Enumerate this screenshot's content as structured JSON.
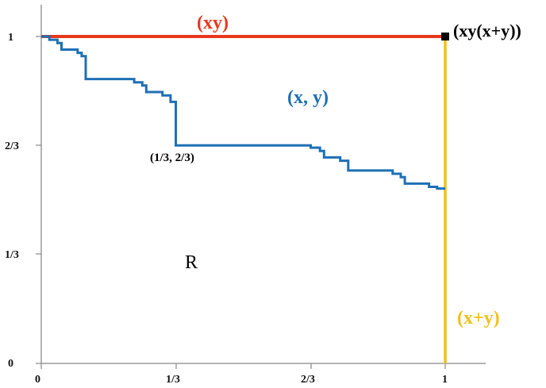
{
  "axes": {
    "x_ticks": [
      "0",
      "1/3",
      "2/3",
      "1"
    ],
    "y_ticks": [
      "0",
      "1/3",
      "2/3",
      "1"
    ]
  },
  "labels": {
    "top_edge": "(xy)",
    "curve": "(x, y)",
    "right_edge": "(x+y)",
    "corner": "(xy(x+y))",
    "point": "(1/3, 2/3)",
    "region": "R"
  },
  "colors": {
    "top_edge": "#e8381c",
    "curve": "#1f6fb5",
    "right_edge": "#f2bf1c",
    "corner_marker": "#000000",
    "axis": "#888888"
  },
  "curve_points": [
    [
      0,
      1
    ],
    [
      0.02,
      1
    ],
    [
      0.02,
      0.99
    ],
    [
      0.04,
      0.99
    ],
    [
      0.04,
      0.98
    ],
    [
      0.05,
      0.98
    ],
    [
      0.05,
      0.96
    ],
    [
      0.08,
      0.96
    ],
    [
      0.08,
      0.96
    ],
    [
      0.09,
      0.96
    ],
    [
      0.09,
      0.95
    ],
    [
      0.1,
      0.95
    ],
    [
      0.1,
      0.94
    ],
    [
      0.11,
      0.94
    ],
    [
      0.11,
      0.87
    ],
    [
      0.23,
      0.87
    ],
    [
      0.23,
      0.86
    ],
    [
      0.25,
      0.86
    ],
    [
      0.25,
      0.85
    ],
    [
      0.26,
      0.85
    ],
    [
      0.26,
      0.83
    ],
    [
      0.3,
      0.83
    ],
    [
      0.3,
      0.82
    ],
    [
      0.32,
      0.82
    ],
    [
      0.32,
      0.8
    ],
    [
      0.333,
      0.8
    ],
    [
      0.333,
      0.667
    ],
    [
      0.667,
      0.667
    ],
    [
      0.667,
      0.66
    ],
    [
      0.69,
      0.66
    ],
    [
      0.69,
      0.65
    ],
    [
      0.7,
      0.65
    ],
    [
      0.7,
      0.63
    ],
    [
      0.74,
      0.63
    ],
    [
      0.74,
      0.62
    ],
    [
      0.76,
      0.62
    ],
    [
      0.76,
      0.59
    ],
    [
      0.87,
      0.59
    ],
    [
      0.87,
      0.58
    ],
    [
      0.89,
      0.58
    ],
    [
      0.89,
      0.57
    ],
    [
      0.9,
      0.57
    ],
    [
      0.9,
      0.55
    ],
    [
      0.96,
      0.55
    ],
    [
      0.96,
      0.54
    ],
    [
      0.98,
      0.54
    ],
    [
      0.98,
      0.535
    ],
    [
      1,
      0.535
    ]
  ]
}
